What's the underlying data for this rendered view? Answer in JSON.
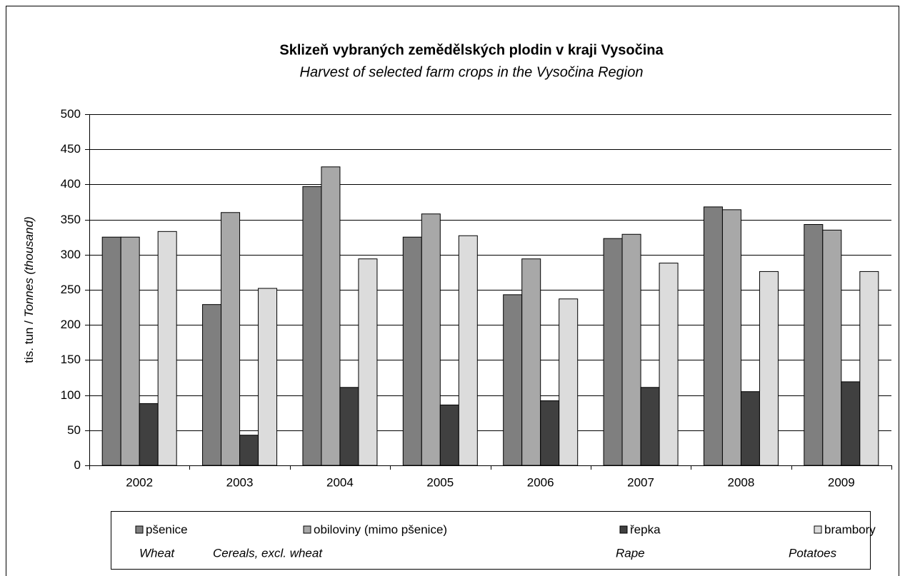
{
  "chart_data": {
    "type": "bar",
    "title": "Sklizeň vybraných zemědělských plodin v kraji Vysočina",
    "subtitle": "Harvest of selected farm crops in the Vysočina Region",
    "y_label": [
      "tis. tun / ",
      "Tonnes (thousand)"
    ],
    "categories": [
      "2002",
      "2003",
      "2004",
      "2005",
      "2006",
      "2007",
      "2008",
      "2009"
    ],
    "series": [
      {
        "name": "pšenice",
        "name_en": "Wheat",
        "color": "#7f7f7f",
        "values": [
          325,
          229,
          397,
          325,
          243,
          323,
          368,
          343
        ]
      },
      {
        "name": "obiloviny (mimo pšenice)",
        "name_en": "Cereals, excl. wheat",
        "color": "#a8a8a8",
        "values": [
          325,
          360,
          425,
          358,
          294,
          329,
          364,
          335
        ]
      },
      {
        "name": "řepka",
        "name_en": "Rape",
        "color": "#404040",
        "values": [
          88,
          43,
          111,
          86,
          92,
          111,
          105,
          119
        ]
      },
      {
        "name": "brambory",
        "name_en": "Potatoes",
        "color": "#dcdcdc",
        "values": [
          333,
          252,
          294,
          327,
          237,
          288,
          276,
          276
        ]
      }
    ],
    "ylim": [
      0,
      500
    ],
    "yticks": [
      0,
      50,
      100,
      150,
      200,
      250,
      300,
      350,
      400,
      450,
      500
    ],
    "grid": true,
    "legend": "bottom"
  }
}
